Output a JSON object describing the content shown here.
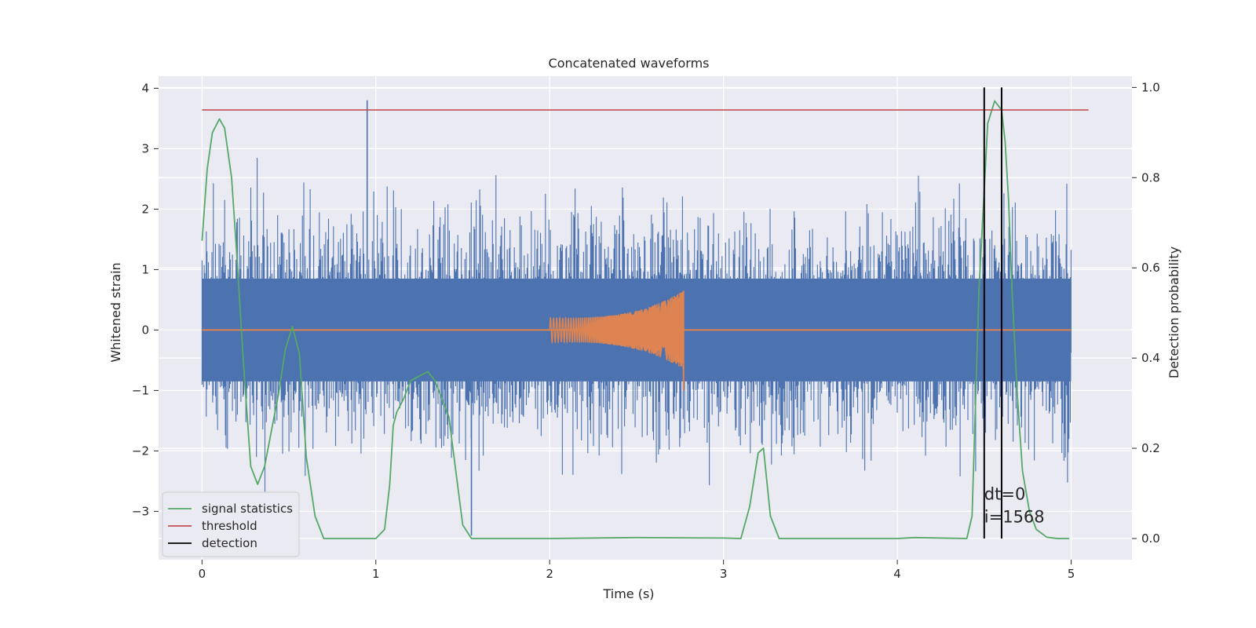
{
  "chart_data": {
    "type": "line",
    "title": "Concatenated waveforms",
    "xlabel": "Time (s)",
    "ylabel": "Whitened strain",
    "y2label": "Detection probability",
    "xlim": [
      -0.25,
      5.35
    ],
    "ylim": [
      -3.8,
      4.2
    ],
    "y2lim": [
      -0.047,
      1.025
    ],
    "xticks": [
      0,
      1,
      2,
      3,
      4,
      5
    ],
    "yticks": [
      -3,
      -2,
      -1,
      0,
      1,
      2,
      3,
      4
    ],
    "y2ticks": [
      0.0,
      0.2,
      0.4,
      0.6,
      0.8,
      1.0
    ],
    "xtick_labels": [
      "0",
      "1",
      "2",
      "3",
      "4",
      "5"
    ],
    "ytick_labels": [
      "−3",
      "−2",
      "−1",
      "0",
      "1",
      "2",
      "3",
      "4"
    ],
    "y2tick_labels": [
      "0.0",
      "0.2",
      "0.4",
      "0.6",
      "0.8",
      "1.0"
    ],
    "grid": true,
    "legend_position": "lower-left",
    "colors": {
      "strain": "#4c72b0",
      "injection": "#dd8452",
      "statistic": "#55a868",
      "threshold": "#c44e52",
      "detection": "#000000",
      "background": "#eaeaf2",
      "grid": "#ffffff"
    },
    "series": [
      {
        "name": "",
        "axis": "left",
        "kind": "noise-band",
        "x_range": [
          0,
          5
        ],
        "typical_amplitude": 1.0,
        "max_peak": 3.8,
        "min_trough": -3.4
      },
      {
        "name": "",
        "axis": "left",
        "kind": "chirp",
        "x_range": [
          2.0,
          2.77
        ],
        "amplitude_range": [
          0.2,
          0.65
        ]
      },
      {
        "name": "signal statistics",
        "axis": "right",
        "x": [
          0.0,
          0.03,
          0.06,
          0.1,
          0.13,
          0.17,
          0.2,
          0.24,
          0.28,
          0.32,
          0.36,
          0.4,
          0.44,
          0.48,
          0.52,
          0.56,
          0.6,
          0.65,
          0.7,
          0.8,
          1.0,
          1.05,
          1.08,
          1.1,
          1.12,
          1.16,
          1.2,
          1.25,
          1.3,
          1.34,
          1.38,
          1.42,
          1.46,
          1.5,
          1.55,
          2.0,
          2.5,
          3.0,
          3.1,
          3.15,
          3.2,
          3.23,
          3.27,
          3.32,
          3.5,
          4.0,
          4.1,
          4.4,
          4.43,
          4.47,
          4.52,
          4.56,
          4.6,
          4.62,
          4.64,
          4.66,
          4.69,
          4.72,
          4.76,
          4.8,
          4.86,
          4.92,
          4.99
        ],
        "y": [
          0.66,
          0.82,
          0.9,
          0.93,
          0.91,
          0.8,
          0.63,
          0.38,
          0.16,
          0.12,
          0.16,
          0.24,
          0.32,
          0.42,
          0.47,
          0.41,
          0.18,
          0.05,
          0.0,
          0.0,
          0.0,
          0.02,
          0.12,
          0.25,
          0.28,
          0.31,
          0.35,
          0.36,
          0.37,
          0.35,
          0.31,
          0.27,
          0.15,
          0.03,
          0.0,
          0.0,
          0.002,
          0.001,
          0.0,
          0.07,
          0.19,
          0.2,
          0.05,
          0.0,
          0.0,
          0.0,
          0.002,
          0.0,
          0.05,
          0.55,
          0.92,
          0.97,
          0.95,
          0.88,
          0.75,
          0.55,
          0.32,
          0.15,
          0.06,
          0.02,
          0.003,
          0.0,
          0.0
        ]
      },
      {
        "name": "threshold",
        "axis": "right",
        "x": [
          0.0,
          5.1
        ],
        "y": [
          0.95,
          0.95
        ]
      },
      {
        "name": "detection",
        "axis": "right",
        "kind": "vertical-lines",
        "x": [
          4.5,
          4.6
        ],
        "y_range": [
          0.0,
          1.0
        ]
      }
    ],
    "annotations": [
      {
        "text": "dt=0",
        "x": 4.5,
        "y2": 0.1
      },
      {
        "text": "i=1568",
        "x": 4.5,
        "y2": 0.05
      }
    ]
  }
}
